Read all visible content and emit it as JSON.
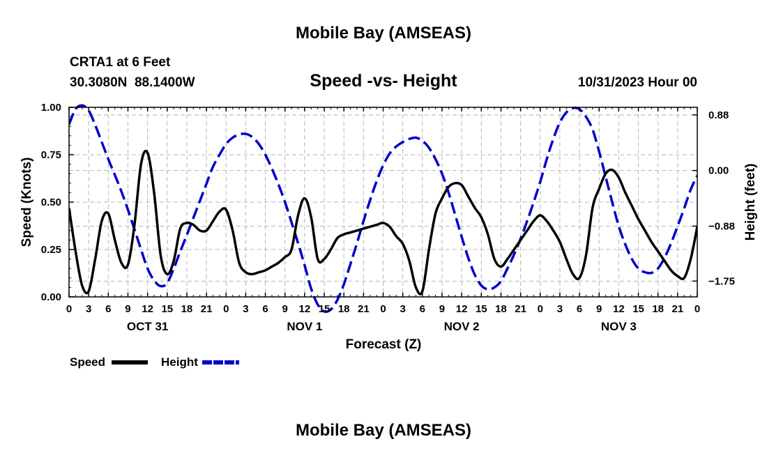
{
  "page_title": "Mobile Bay (AMSEAS)",
  "footer_title": "Mobile Bay (AMSEAS)",
  "station": {
    "name_line": "CRTA1 at 6 Feet",
    "coords_line": "30.3080N  88.1400W"
  },
  "forecast_time": "10/31/2023 Hour 00",
  "chart_data": {
    "type": "line",
    "title": "Speed -vs- Height",
    "xlabel": "Forecast (Z)",
    "ylabel_left": "Speed (Knots)",
    "ylabel_right": "Height (feet)",
    "x_unit": "hours since 2023-10-31 00Z",
    "xlim": [
      0,
      96
    ],
    "ylim_left": [
      0,
      1.0
    ],
    "ylim_right": [
      -2.0,
      1.0
    ],
    "left_ticks": [
      {
        "value": 0.0,
        "label": "0.00"
      },
      {
        "value": 0.25,
        "label": "0.25"
      },
      {
        "value": 0.5,
        "label": "0.50"
      },
      {
        "value": 0.75,
        "label": "0.75"
      },
      {
        "value": 1.0,
        "label": "1.00"
      }
    ],
    "right_ticks": [
      {
        "value": 0.88,
        "label": "0.88"
      },
      {
        "value": 0.0,
        "label": "0.00"
      },
      {
        "value": -0.88,
        "label": "−0.88"
      },
      {
        "value": -1.75,
        "label": "−1.75"
      }
    ],
    "x_ticks": [
      {
        "value": 0,
        "label": "0"
      },
      {
        "value": 3,
        "label": "3"
      },
      {
        "value": 6,
        "label": "6"
      },
      {
        "value": 9,
        "label": "9"
      },
      {
        "value": 12,
        "label": "12"
      },
      {
        "value": 15,
        "label": "15"
      },
      {
        "value": 18,
        "label": "18"
      },
      {
        "value": 21,
        "label": "21"
      },
      {
        "value": 24,
        "label": "0"
      },
      {
        "value": 27,
        "label": "3"
      },
      {
        "value": 30,
        "label": "6"
      },
      {
        "value": 33,
        "label": "9"
      },
      {
        "value": 36,
        "label": "12"
      },
      {
        "value": 39,
        "label": "15"
      },
      {
        "value": 42,
        "label": "18"
      },
      {
        "value": 45,
        "label": "21"
      },
      {
        "value": 48,
        "label": "0"
      },
      {
        "value": 51,
        "label": "3"
      },
      {
        "value": 54,
        "label": "6"
      },
      {
        "value": 57,
        "label": "9"
      },
      {
        "value": 60,
        "label": "12"
      },
      {
        "value": 63,
        "label": "15"
      },
      {
        "value": 66,
        "label": "18"
      },
      {
        "value": 69,
        "label": "21"
      },
      {
        "value": 72,
        "label": "0"
      },
      {
        "value": 75,
        "label": "3"
      },
      {
        "value": 78,
        "label": "6"
      },
      {
        "value": 81,
        "label": "9"
      },
      {
        "value": 84,
        "label": "12"
      },
      {
        "value": 87,
        "label": "15"
      },
      {
        "value": 90,
        "label": "18"
      },
      {
        "value": 93,
        "label": "21"
      },
      {
        "value": 96,
        "label": "0"
      }
    ],
    "day_labels": [
      {
        "value": 12,
        "label": "OCT 31"
      },
      {
        "value": 36,
        "label": "NOV 1"
      },
      {
        "value": 60,
        "label": "NOV 2"
      },
      {
        "value": 84,
        "label": "NOV 3"
      }
    ],
    "grid": true,
    "legend_position": "bottom-left",
    "series": [
      {
        "name": "Speed",
        "legend_label": "Speed",
        "axis": "left",
        "color": "#000000",
        "dash": "solid",
        "points": [
          [
            0,
            0.47
          ],
          [
            1,
            0.24
          ],
          [
            2,
            0.06
          ],
          [
            3,
            0.03
          ],
          [
            4,
            0.2
          ],
          [
            5,
            0.4
          ],
          [
            6,
            0.44
          ],
          [
            7,
            0.3
          ],
          [
            8,
            0.18
          ],
          [
            9,
            0.17
          ],
          [
            10,
            0.38
          ],
          [
            11,
            0.7
          ],
          [
            12,
            0.76
          ],
          [
            13,
            0.55
          ],
          [
            14,
            0.22
          ],
          [
            15,
            0.12
          ],
          [
            16,
            0.19
          ],
          [
            17,
            0.36
          ],
          [
            18,
            0.39
          ],
          [
            19,
            0.38
          ],
          [
            20,
            0.35
          ],
          [
            21,
            0.35
          ],
          [
            22,
            0.4
          ],
          [
            23,
            0.45
          ],
          [
            24,
            0.46
          ],
          [
            25,
            0.35
          ],
          [
            26,
            0.18
          ],
          [
            27,
            0.13
          ],
          [
            28,
            0.12
          ],
          [
            29,
            0.13
          ],
          [
            30,
            0.14
          ],
          [
            31,
            0.16
          ],
          [
            32,
            0.18
          ],
          [
            33,
            0.21
          ],
          [
            34,
            0.25
          ],
          [
            35,
            0.43
          ],
          [
            36,
            0.52
          ],
          [
            37,
            0.42
          ],
          [
            38,
            0.2
          ],
          [
            39,
            0.2
          ],
          [
            40,
            0.25
          ],
          [
            41,
            0.31
          ],
          [
            42,
            0.33
          ],
          [
            43,
            0.34
          ],
          [
            44,
            0.35
          ],
          [
            45,
            0.36
          ],
          [
            46,
            0.37
          ],
          [
            47,
            0.38
          ],
          [
            48,
            0.39
          ],
          [
            49,
            0.37
          ],
          [
            50,
            0.32
          ],
          [
            51,
            0.28
          ],
          [
            52,
            0.19
          ],
          [
            53,
            0.05
          ],
          [
            54,
            0.03
          ],
          [
            55,
            0.25
          ],
          [
            56,
            0.44
          ],
          [
            57,
            0.52
          ],
          [
            58,
            0.58
          ],
          [
            59,
            0.6
          ],
          [
            60,
            0.59
          ],
          [
            61,
            0.53
          ],
          [
            62,
            0.47
          ],
          [
            63,
            0.42
          ],
          [
            64,
            0.33
          ],
          [
            65,
            0.2
          ],
          [
            66,
            0.16
          ],
          [
            67,
            0.2
          ],
          [
            68,
            0.25
          ],
          [
            69,
            0.3
          ],
          [
            70,
            0.35
          ],
          [
            71,
            0.4
          ],
          [
            72,
            0.43
          ],
          [
            73,
            0.4
          ],
          [
            74,
            0.35
          ],
          [
            75,
            0.29
          ],
          [
            76,
            0.2
          ],
          [
            77,
            0.12
          ],
          [
            78,
            0.1
          ],
          [
            79,
            0.22
          ],
          [
            80,
            0.47
          ],
          [
            81,
            0.57
          ],
          [
            82,
            0.65
          ],
          [
            83,
            0.67
          ],
          [
            84,
            0.63
          ],
          [
            85,
            0.55
          ],
          [
            86,
            0.48
          ],
          [
            87,
            0.41
          ],
          [
            88,
            0.35
          ],
          [
            89,
            0.29
          ],
          [
            90,
            0.24
          ],
          [
            91,
            0.19
          ],
          [
            92,
            0.14
          ],
          [
            93,
            0.11
          ],
          [
            94,
            0.1
          ],
          [
            95,
            0.2
          ],
          [
            96,
            0.37
          ]
        ]
      },
      {
        "name": "Height",
        "legend_label": "Height",
        "axis": "right",
        "color": "#0000cc",
        "dash": "dashed",
        "points": [
          [
            0,
            0.73
          ],
          [
            1,
            0.97
          ],
          [
            2,
            1.03
          ],
          [
            3,
            0.95
          ],
          [
            4,
            0.72
          ],
          [
            5,
            0.45
          ],
          [
            6,
            0.18
          ],
          [
            7,
            -0.07
          ],
          [
            8,
            -0.33
          ],
          [
            9,
            -0.62
          ],
          [
            10,
            -0.93
          ],
          [
            11,
            -1.25
          ],
          [
            12,
            -1.55
          ],
          [
            13,
            -1.74
          ],
          [
            14,
            -1.83
          ],
          [
            15,
            -1.78
          ],
          [
            16,
            -1.55
          ],
          [
            17,
            -1.28
          ],
          [
            18,
            -1.02
          ],
          [
            19,
            -0.75
          ],
          [
            20,
            -0.48
          ],
          [
            21,
            -0.21
          ],
          [
            22,
            0.06
          ],
          [
            23,
            0.25
          ],
          [
            24,
            0.42
          ],
          [
            25,
            0.52
          ],
          [
            26,
            0.57
          ],
          [
            27,
            0.58
          ],
          [
            28,
            0.53
          ],
          [
            29,
            0.42
          ],
          [
            30,
            0.25
          ],
          [
            31,
            0.03
          ],
          [
            32,
            -0.22
          ],
          [
            33,
            -0.5
          ],
          [
            34,
            -0.82
          ],
          [
            35,
            -1.15
          ],
          [
            36,
            -1.5
          ],
          [
            37,
            -1.87
          ],
          [
            38,
            -2.12
          ],
          [
            39,
            -2.23
          ],
          [
            40,
            -2.2
          ],
          [
            41,
            -2.05
          ],
          [
            42,
            -1.8
          ],
          [
            43,
            -1.48
          ],
          [
            44,
            -1.15
          ],
          [
            45,
            -0.8
          ],
          [
            46,
            -0.47
          ],
          [
            47,
            -0.17
          ],
          [
            48,
            0.08
          ],
          [
            49,
            0.27
          ],
          [
            50,
            0.38
          ],
          [
            51,
            0.45
          ],
          [
            52,
            0.5
          ],
          [
            53,
            0.52
          ],
          [
            54,
            0.47
          ],
          [
            55,
            0.36
          ],
          [
            56,
            0.18
          ],
          [
            57,
            -0.05
          ],
          [
            58,
            -0.35
          ],
          [
            59,
            -0.7
          ],
          [
            60,
            -1.05
          ],
          [
            61,
            -1.38
          ],
          [
            62,
            -1.65
          ],
          [
            63,
            -1.82
          ],
          [
            64,
            -1.88
          ],
          [
            65,
            -1.85
          ],
          [
            66,
            -1.75
          ],
          [
            67,
            -1.55
          ],
          [
            68,
            -1.33
          ],
          [
            69,
            -1.08
          ],
          [
            70,
            -0.8
          ],
          [
            71,
            -0.5
          ],
          [
            72,
            -0.18
          ],
          [
            73,
            0.18
          ],
          [
            74,
            0.5
          ],
          [
            75,
            0.76
          ],
          [
            76,
            0.92
          ],
          [
            77,
            0.99
          ],
          [
            78,
            0.97
          ],
          [
            79,
            0.85
          ],
          [
            80,
            0.65
          ],
          [
            81,
            0.3
          ],
          [
            82,
            -0.1
          ],
          [
            83,
            -0.5
          ],
          [
            84,
            -0.88
          ],
          [
            85,
            -1.17
          ],
          [
            86,
            -1.4
          ],
          [
            87,
            -1.55
          ],
          [
            88,
            -1.61
          ],
          [
            89,
            -1.62
          ],
          [
            90,
            -1.55
          ],
          [
            91,
            -1.38
          ],
          [
            92,
            -1.15
          ],
          [
            93,
            -0.88
          ],
          [
            94,
            -0.6
          ],
          [
            95,
            -0.3
          ],
          [
            96,
            -0.08
          ]
        ]
      }
    ]
  }
}
